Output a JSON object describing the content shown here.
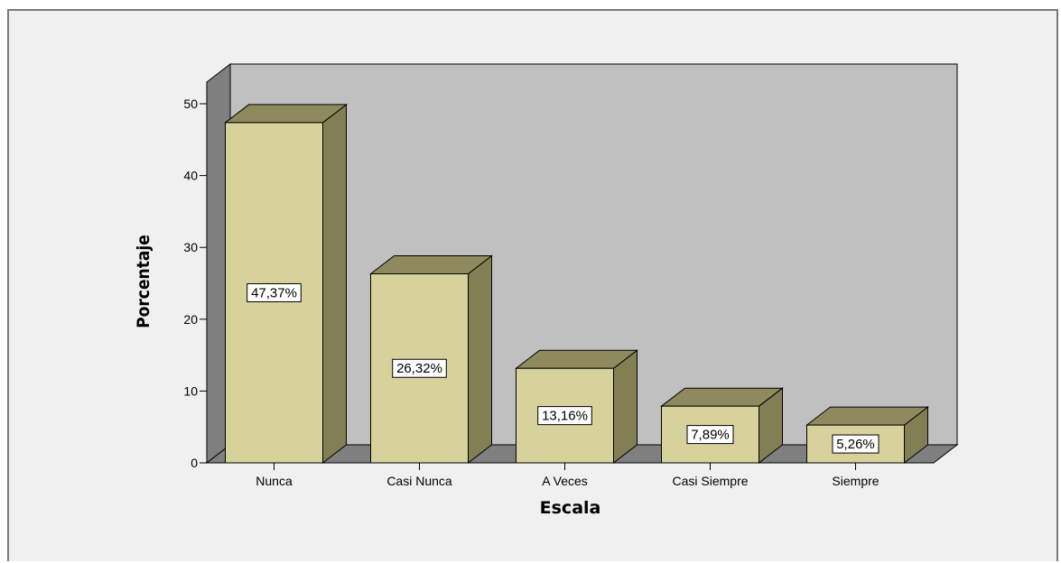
{
  "chart_data": {
    "type": "bar",
    "style": "3d",
    "categories": [
      "Nunca",
      "Casi Nunca",
      "A Veces",
      "Casi Siempre",
      "Siempre"
    ],
    "values": [
      47.37,
      26.32,
      13.16,
      7.89,
      5.26
    ],
    "data_labels": [
      "47,37%",
      "26,32%",
      "13,16%",
      "7,89%",
      "5,26%"
    ],
    "title": "",
    "xlabel": "Escala",
    "ylabel": "Porcentaje",
    "ylim": [
      0,
      50
    ],
    "yticks": [
      "0",
      "10",
      "20",
      "30",
      "40",
      "50"
    ],
    "ytick_values": [
      0,
      10,
      20,
      30,
      40,
      50
    ],
    "grid": false,
    "colors": {
      "bar_front": "#d7d29b",
      "bar_top": "#8e8a5e",
      "bar_side": "#827f55",
      "wall_back": "#c0c0c0",
      "wall_side": "#7f7f7f",
      "floor": "#7f7f7f",
      "background": "#f0f0f0"
    }
  }
}
